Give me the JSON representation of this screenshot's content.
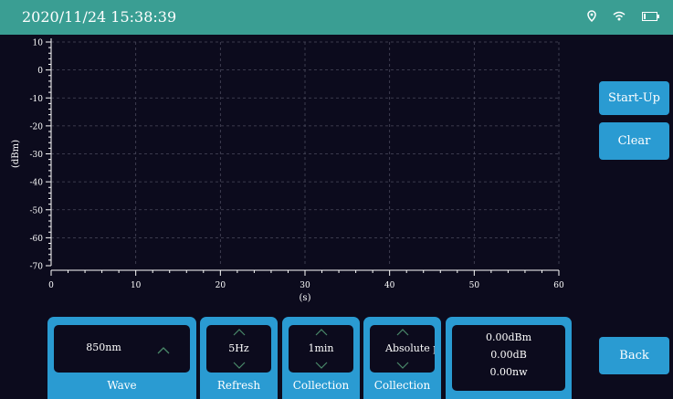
{
  "status_bar": {
    "datetime": "2020/11/24 15:38:39",
    "icons": [
      "location-icon",
      "wifi-icon",
      "battery-icon"
    ],
    "color": "#3a9e93"
  },
  "chart_data": {
    "type": "line",
    "title": "",
    "xlabel": "(s)",
    "ylabel": "(dBm)",
    "xlim": [
      0,
      60
    ],
    "ylim": [
      -70,
      10
    ],
    "x_ticks": [
      0,
      10,
      20,
      30,
      40,
      50,
      60
    ],
    "y_ticks": [
      10,
      0,
      -10,
      -20,
      -30,
      -40,
      -50,
      -60,
      -70
    ],
    "grid": true,
    "series": []
  },
  "actions": {
    "startup_label": "Start-Up",
    "clear_label": "Clear",
    "back_label": "Back"
  },
  "controls": {
    "wave": {
      "value": "850nm",
      "label": "Wave"
    },
    "refresh": {
      "value": "5Hz",
      "label": "Refresh"
    },
    "collection_time": {
      "value": "1min",
      "label": "Collection"
    },
    "collection_mode": {
      "value": "Absolute po",
      "label": "Collection"
    }
  },
  "readout": {
    "power": "0.00dBm",
    "relative": "0.00dB",
    "linear": "0.00nw"
  },
  "colors": {
    "accent": "#2a9bd2",
    "background": "#0c0b1d",
    "chevron": "#4a8a6a"
  }
}
